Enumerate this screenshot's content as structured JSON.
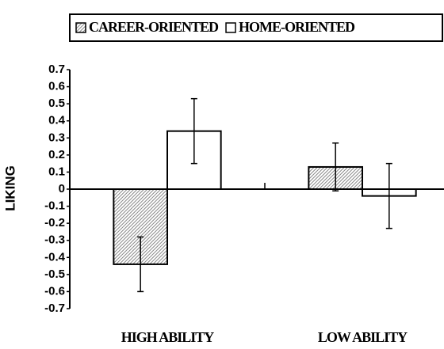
{
  "chart_data": {
    "type": "bar",
    "y_label": "LIKING",
    "categories": [
      "HIGH ABILITY",
      "LOW ABILITY"
    ],
    "series": [
      {
        "name": "CAREER-ORIENTED",
        "color": "#888888",
        "hatched": true,
        "values": [
          -0.44,
          0.13
        ],
        "errors": [
          0.16,
          0.14
        ]
      },
      {
        "name": "HOME-ORIENTED",
        "color": "#ffffff",
        "hatched": false,
        "values": [
          0.34,
          -0.04
        ],
        "errors": [
          0.19,
          0.19
        ]
      }
    ],
    "ylim": [
      -0.7,
      0.7
    ],
    "yticks": [
      0.7,
      0.6,
      0.5,
      0.4,
      0.3,
      0.2,
      0.1,
      0,
      -0.1,
      -0.2,
      -0.3,
      -0.4,
      -0.5,
      -0.6,
      -0.7
    ],
    "legend": "top"
  }
}
